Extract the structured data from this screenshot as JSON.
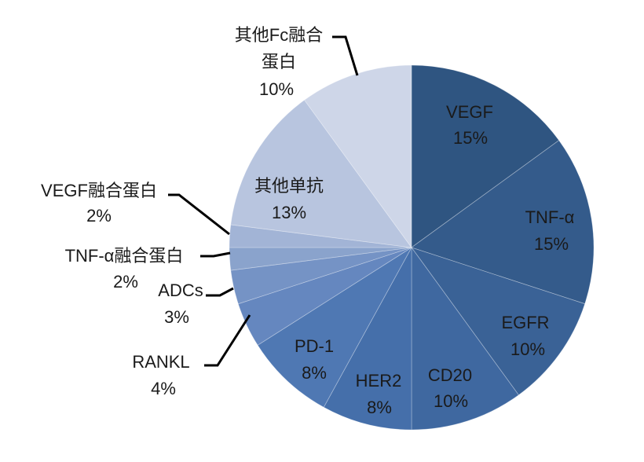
{
  "chart_data": {
    "type": "pie",
    "categories": [
      "VEGF",
      "TNF-α",
      "EGFR",
      "CD20",
      "HER2",
      "PD-1",
      "RANKL",
      "ADCs",
      "TNF-α融合蛋白",
      "VEGF融合蛋白",
      "其他单抗",
      "其他Fc融合蛋白"
    ],
    "values": [
      15,
      15,
      10,
      10,
      8,
      8,
      4,
      3,
      2,
      2,
      13,
      10
    ],
    "value_labels": [
      "15%",
      "15%",
      "10%",
      "10%",
      "8%",
      "8%",
      "4%",
      "3%",
      "2%",
      "2%",
      "13%",
      "10%"
    ],
    "colors": [
      "#2F5581",
      "#345B8B",
      "#3A6296",
      "#3F68A0",
      "#456FAA",
      "#4F78B3",
      "#6587BF",
      "#7593C5",
      "#8AA3CC",
      "#A2B4D6",
      "#B8C5DF",
      "#CED6E8"
    ],
    "start": "top",
    "direction": "clockwise",
    "legend": "none"
  }
}
